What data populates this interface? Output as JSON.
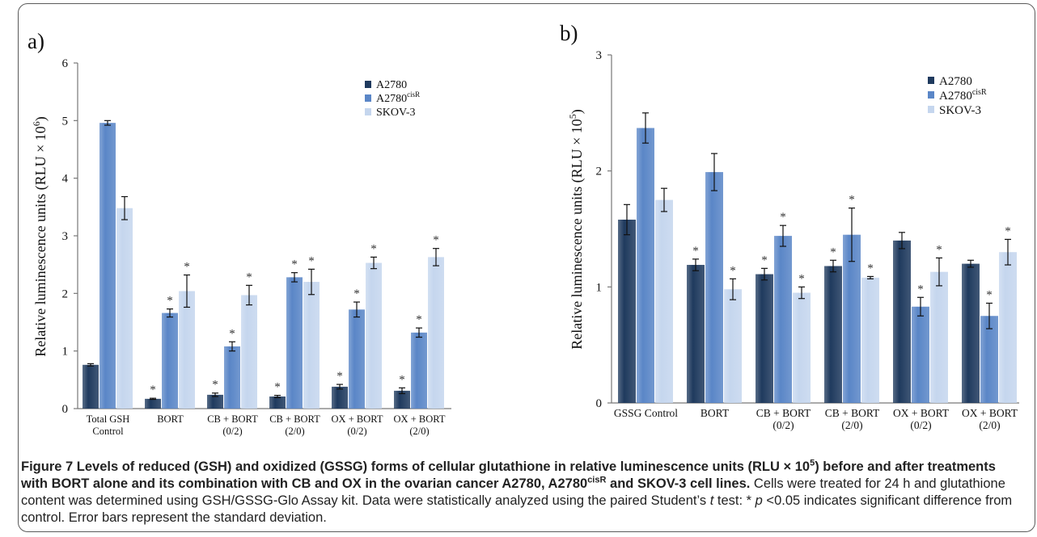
{
  "colors": {
    "A2780": "#1f3a5e",
    "A2780cisR": "#5a86c7",
    "SKOV3": "#c5d6ee"
  },
  "legend_a": {
    "s1": "A2780",
    "s2_base": "A2780",
    "s2_sup": "cisR",
    "s3": "SKOV-3"
  },
  "legend_b": {
    "s1": "A2780",
    "s2_base": "A2780",
    "s2_sup": "cisR",
    "s3": "SKOV-3"
  },
  "chart_data": [
    {
      "type": "bar",
      "panel_label": "a)",
      "ylabel": "Relative luminescence units (RLU × 10⁶)",
      "ylabel_base": "Relative luminescence units (RLU × 10",
      "ylabel_sup": "6",
      "ylabel_end": ")",
      "ylim": [
        0,
        6
      ],
      "yticks": [
        "0",
        "1",
        "2",
        "3",
        "4",
        "5",
        "6"
      ],
      "grid": false,
      "legend_position": "top-right",
      "categories": [
        [
          "Total GSH",
          "Control"
        ],
        [
          "BORT"
        ],
        [
          "CB + BORT",
          "(0/2)"
        ],
        [
          "CB + BORT",
          "(2/0)"
        ],
        [
          "OX + BORT",
          "(0/2)"
        ],
        [
          "OX + BORT",
          "(2/0)"
        ]
      ],
      "series": [
        {
          "name": "A2780",
          "values": [
            0.76,
            0.17,
            0.24,
            0.21,
            0.38,
            0.31
          ],
          "errors": [
            0.02,
            0.01,
            0.03,
            0.02,
            0.04,
            0.05
          ],
          "significant": [
            false,
            true,
            true,
            true,
            true,
            true
          ]
        },
        {
          "name": "A2780cisR",
          "values": [
            4.96,
            1.66,
            1.08,
            2.28,
            1.72,
            1.32
          ],
          "errors": [
            0.04,
            0.07,
            0.08,
            0.08,
            0.13,
            0.08
          ],
          "significant": [
            false,
            true,
            true,
            true,
            true,
            true
          ]
        },
        {
          "name": "SKOV-3",
          "values": [
            3.48,
            2.04,
            1.97,
            2.2,
            2.53,
            2.63
          ],
          "errors": [
            0.2,
            0.28,
            0.17,
            0.22,
            0.1,
            0.15
          ],
          "significant": [
            false,
            true,
            true,
            true,
            true,
            true
          ]
        }
      ]
    },
    {
      "type": "bar",
      "panel_label": "b)",
      "ylabel": "Relative luminescence units (RLU × 10⁵)",
      "ylabel_base": "Relative luminescence units (RLU × 10",
      "ylabel_sup": "5",
      "ylabel_end": ")",
      "ylim": [
        0,
        3
      ],
      "yticks": [
        "0",
        "1",
        "2",
        "3"
      ],
      "grid": false,
      "legend_position": "top-right",
      "categories": [
        [
          "GSSG Control"
        ],
        [
          "BORT"
        ],
        [
          "CB + BORT",
          "(0/2)"
        ],
        [
          "CB + BORT",
          "(2/0)"
        ],
        [
          "OX + BORT",
          "(0/2)"
        ],
        [
          "OX + BORT",
          "(2/0)"
        ]
      ],
      "series": [
        {
          "name": "A2780",
          "values": [
            1.58,
            1.19,
            1.11,
            1.18,
            1.4,
            1.2
          ],
          "errors": [
            0.13,
            0.05,
            0.05,
            0.05,
            0.07,
            0.03
          ],
          "significant": [
            false,
            true,
            true,
            true,
            false,
            false
          ]
        },
        {
          "name": "A2780cisR",
          "values": [
            2.37,
            1.99,
            1.44,
            1.45,
            0.83,
            0.75
          ],
          "errors": [
            0.13,
            0.16,
            0.09,
            0.23,
            0.08,
            0.11
          ],
          "significant": [
            false,
            false,
            true,
            true,
            true,
            true
          ]
        },
        {
          "name": "SKOV-3",
          "values": [
            1.75,
            0.98,
            0.95,
            1.08,
            1.13,
            1.3
          ],
          "errors": [
            0.1,
            0.09,
            0.05,
            0.01,
            0.12,
            0.11
          ],
          "significant": [
            false,
            true,
            true,
            true,
            true,
            true
          ]
        }
      ]
    }
  ],
  "caption": {
    "title_1": "Figure 7 Levels of reduced (GSH) and oxidized (GSSG) forms of cellular glutathione in relative luminescence units (RLU × 10",
    "title_sup1": "5",
    "title_2": ") before and after treatments with BORT alone and its combination with CB and OX in the ovarian cancer A2780, A2780",
    "title_sup2": "cisR",
    "title_3": " and SKOV-3 cell lines.",
    "body_1": " Cells were treated for 24 h and glutathione content was determined using GSH/GSSG-Glo Assay kit. Data were statistically analyzed using the paired Student’s ",
    "body_t": "t",
    "body_2": " test: * ",
    "body_p": "p",
    "body_3": " <0.05 indicates significant difference from control. Error bars represent the standard deviation."
  }
}
